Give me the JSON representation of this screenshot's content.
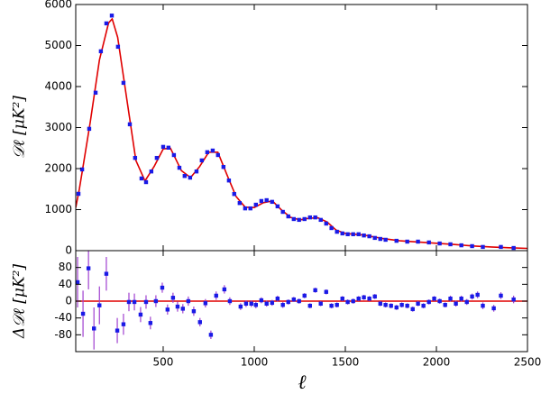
{
  "chart_data": [
    {
      "type": "scatter",
      "ylabel": "𝒟ℓ [μK²]",
      "xlim": [
        20,
        2500
      ],
      "xticks": [
        500,
        1000,
        1500,
        2000,
        2500
      ],
      "ylim": [
        0,
        6000
      ],
      "yticks": [
        0,
        1000,
        2000,
        3000,
        4000,
        5000,
        6000
      ],
      "series": [
        {
          "type": "line",
          "color": "#e00000",
          "x": [
            20,
            40,
            60,
            100,
            150,
            200,
            220,
            250,
            300,
            350,
            400,
            450,
            500,
            540,
            600,
            650,
            700,
            750,
            800,
            850,
            900,
            950,
            1000,
            1050,
            1100,
            1150,
            1200,
            1250,
            1300,
            1350,
            1400,
            1450,
            1500,
            1600,
            1700,
            1800,
            1900,
            2000,
            2100,
            2200,
            2300,
            2400,
            2500
          ],
          "values": [
            1050,
            1500,
            2050,
            3150,
            4650,
            5550,
            5650,
            5200,
            3700,
            2200,
            1700,
            2050,
            2480,
            2500,
            1950,
            1780,
            2050,
            2400,
            2400,
            1850,
            1320,
            1060,
            1050,
            1170,
            1210,
            990,
            810,
            750,
            790,
            800,
            700,
            500,
            420,
            380,
            300,
            240,
            210,
            180,
            150,
            115,
            90,
            70,
            55
          ]
        },
        {
          "type": "points",
          "color": "#1a1ae6",
          "x": [
            35,
            55,
            94,
            129,
            158,
            188,
            218,
            252,
            282,
            317,
            346,
            381,
            406,
            435,
            465,
            500,
            529,
            559,
            589,
            618,
            648,
            683,
            712,
            742,
            772,
            801,
            831,
            861,
            890,
            920,
            950,
            979,
            1009,
            1039,
            1068,
            1098,
            1128,
            1157,
            1187,
            1217,
            1246,
            1276,
            1306,
            1335,
            1365,
            1395,
            1424,
            1454,
            1484,
            1513,
            1543,
            1573,
            1602,
            1632,
            1662,
            1692,
            1721,
            1781,
            1840,
            1899,
            1959,
            2018,
            2077,
            2137,
            2196,
            2255,
            2354,
            2424
          ],
          "values": [
            1385,
            1980,
            2970,
            3850,
            4860,
            5540,
            5730,
            4970,
            4090,
            3080,
            2260,
            1760,
            1670,
            1930,
            2260,
            2530,
            2510,
            2330,
            2020,
            1820,
            1780,
            1930,
            2200,
            2400,
            2440,
            2330,
            2040,
            1710,
            1380,
            1160,
            1030,
            1030,
            1120,
            1210,
            1230,
            1190,
            1080,
            945,
            835,
            770,
            750,
            770,
            810,
            810,
            750,
            660,
            550,
            460,
            420,
            400,
            400,
            400,
            370,
            350,
            310,
            285,
            265,
            240,
            220,
            220,
            200,
            175,
            155,
            130,
            110,
            90,
            90,
            65
          ]
        }
      ]
    },
    {
      "type": "scatter",
      "xlabel": "ℓ",
      "ylabel": "Δ𝒟ℓ [μK²]",
      "xlim": [
        20,
        2500
      ],
      "xticks": [
        500,
        1000,
        1500,
        2000,
        2500
      ],
      "ylim": [
        -120,
        120
      ],
      "yticks": [
        -80,
        -40,
        0,
        40,
        80
      ],
      "hline": 0,
      "hline_color": "#e00000",
      "series": [
        {
          "type": "points",
          "color": "#1a1ae6",
          "error_color": "#a040d0",
          "x": [
            30,
            60,
            90,
            120,
            150,
            188,
            248,
            282,
            312,
            342,
            376,
            406,
            430,
            460,
            495,
            524,
            554,
            579,
            608,
            638,
            668,
            702,
            732,
            762,
            791,
            836,
            866,
            925,
            955,
            984,
            1009,
            1039,
            1068,
            1098,
            1128,
            1157,
            1187,
            1217,
            1246,
            1276,
            1306,
            1335,
            1365,
            1395,
            1424,
            1454,
            1484,
            1513,
            1543,
            1573,
            1602,
            1632,
            1662,
            1692,
            1721,
            1751,
            1781,
            1810,
            1840,
            1870,
            1899,
            1929,
            1959,
            1988,
            2018,
            2048,
            2077,
            2107,
            2137,
            2167,
            2196,
            2226,
            2255,
            2315,
            2354,
            2424
          ],
          "values": [
            45,
            -30,
            78,
            -65,
            -10,
            65,
            -70,
            -55,
            -2,
            -2,
            -32,
            -2,
            -52,
            0,
            32,
            -20,
            8,
            -13,
            -18,
            0,
            -24,
            -50,
            -5,
            -80,
            13,
            28,
            0,
            -13,
            -6,
            -6,
            -9,
            2,
            -6,
            -4,
            6,
            -9,
            -2,
            4,
            0,
            13,
            -11,
            26,
            -6,
            22,
            -11,
            -9,
            6,
            -2,
            0,
            6,
            9,
            6,
            11,
            -6,
            -9,
            -11,
            -15,
            -9,
            -11,
            -19,
            -6,
            -11,
            -2,
            6,
            0,
            -9,
            6,
            -6,
            6,
            -2,
            11,
            15,
            -11,
            -17,
            13,
            4
          ],
          "errors": [
            60,
            55,
            50,
            50,
            45,
            40,
            30,
            25,
            22,
            20,
            18,
            16,
            15,
            14,
            12,
            12,
            12,
            12,
            11,
            11,
            11,
            10,
            10,
            10,
            10,
            10,
            9,
            8,
            8,
            8,
            8,
            7,
            7,
            7,
            7,
            7,
            6,
            6,
            6,
            6,
            6,
            6,
            6,
            6,
            6,
            6,
            6,
            6,
            6,
            6,
            6,
            6,
            6,
            6,
            6,
            6,
            6,
            6,
            6,
            6,
            6,
            6,
            6,
            6,
            6,
            6,
            7,
            7,
            7,
            7,
            7,
            8,
            8,
            8,
            8,
            9
          ]
        }
      ]
    }
  ]
}
